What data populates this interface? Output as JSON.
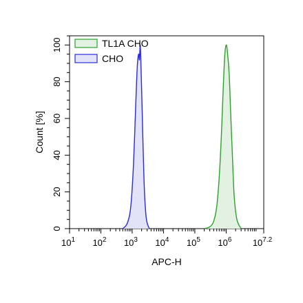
{
  "chart_data": {
    "type": "area",
    "xlabel": "APC-H",
    "ylabel": "Count [%]",
    "x_scale": "log10",
    "xlim": [
      10,
      15848932
    ],
    "ylim": [
      0,
      105
    ],
    "x_ticks": [
      {
        "value": 10,
        "base": "10",
        "exp": "1"
      },
      {
        "value": 100,
        "base": "10",
        "exp": "2"
      },
      {
        "value": 1000,
        "base": "10",
        "exp": "3"
      },
      {
        "value": 10000,
        "base": "10",
        "exp": "4"
      },
      {
        "value": 100000,
        "base": "10",
        "exp": "5"
      },
      {
        "value": 1000000,
        "base": "10",
        "exp": "6"
      },
      {
        "value": 15848932,
        "base": "10",
        "exp": "7.2"
      }
    ],
    "y_ticks": [
      "0",
      "20",
      "40",
      "60",
      "80",
      "100"
    ],
    "legend_position": "top-left",
    "series": [
      {
        "name": "TL1A CHO",
        "line_color": "#2ca02c",
        "fill_color": "#e3f1e2",
        "x": [
          200000,
          300000,
          400000,
          500000,
          600000,
          700000,
          800000,
          900000,
          1000000,
          1100000,
          1250000,
          1400000,
          1600000,
          1800000,
          2200000,
          3000000
        ],
        "y": [
          0,
          1,
          4,
          12,
          28,
          50,
          75,
          94,
          100,
          96,
          84,
          62,
          38,
          18,
          5,
          0
        ]
      },
      {
        "name": "CHO",
        "line_color": "#2b2bd9",
        "fill_color": "#e2e2f8",
        "x": [
          500,
          700,
          900,
          1100,
          1300,
          1450,
          1600,
          1700,
          1800,
          1900,
          2100,
          2400,
          2800,
          3500
        ],
        "y": [
          0,
          3,
          12,
          35,
          68,
          88,
          95,
          92,
          100,
          90,
          62,
          25,
          6,
          0
        ]
      }
    ]
  }
}
